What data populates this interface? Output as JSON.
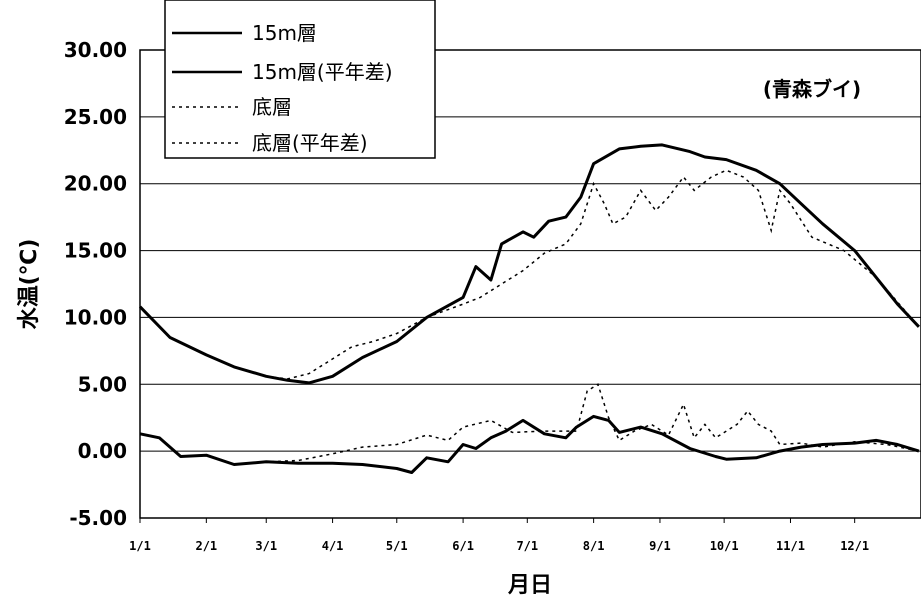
{
  "chart_data": {
    "type": "line",
    "xlabel": "月日",
    "ylabel": "水温(℃)",
    "annotation": "(青森ブイ)",
    "ylim": [
      -5,
      30
    ],
    "ytick_labels": [
      "30.00",
      "25.00",
      "20.00",
      "15.00",
      "10.00",
      "5.00",
      "0.00",
      "-5.00"
    ],
    "xtick_labels": [
      "1/1",
      "2/1",
      "3/1",
      "4/1",
      "5/1",
      "6/1",
      "7/1",
      "8/1",
      "9/1",
      "10/1",
      "11/1",
      "12/1"
    ],
    "grid": true,
    "legend_position": "top-left",
    "series": [
      {
        "name": "15m層",
        "style": "solid",
        "color": "#000000",
        "x": [
          1,
          15,
          32,
          45,
          60,
          70,
          80,
          91,
          105,
          121,
          135,
          152,
          158,
          165,
          170,
          180,
          185,
          192,
          200,
          207,
          213,
          225,
          235,
          245,
          258,
          265,
          275,
          289,
          300,
          310,
          320,
          335,
          345,
          355,
          365
        ],
        "y": [
          10.8,
          8.5,
          7.2,
          6.3,
          5.6,
          5.3,
          5.1,
          5.6,
          7.0,
          8.2,
          10.0,
          11.5,
          13.8,
          12.8,
          15.5,
          16.4,
          16.0,
          17.2,
          17.5,
          19.0,
          21.5,
          22.6,
          22.8,
          22.9,
          22.4,
          22.0,
          21.8,
          21.0,
          20.0,
          18.5,
          17.0,
          15.0,
          13.0,
          11.0,
          9.3
        ]
      },
      {
        "name": "15m層(平年差)",
        "style": "solid",
        "color": "#000000",
        "x": [
          1,
          10,
          20,
          32,
          45,
          60,
          75,
          91,
          105,
          121,
          128,
          135,
          145,
          152,
          158,
          165,
          172,
          180,
          190,
          200,
          205,
          213,
          220,
          225,
          235,
          245,
          258,
          270,
          275,
          289,
          300,
          310,
          320,
          335,
          345,
          355,
          365
        ],
        "y": [
          1.3,
          1.0,
          -0.4,
          -0.3,
          -1.0,
          -0.8,
          -0.9,
          -0.9,
          -1.0,
          -1.3,
          -1.6,
          -0.5,
          -0.8,
          0.5,
          0.2,
          1.0,
          1.5,
          2.3,
          1.3,
          1.0,
          1.8,
          2.6,
          2.3,
          1.4,
          1.8,
          1.3,
          0.2,
          -0.4,
          -0.6,
          -0.5,
          0.0,
          0.3,
          0.5,
          0.6,
          0.8,
          0.5,
          0.0
        ]
      },
      {
        "name": "底層",
        "style": "dotted",
        "color": "#000000",
        "x": [
          1,
          15,
          32,
          45,
          60,
          70,
          80,
          91,
          100,
          110,
          121,
          135,
          152,
          160,
          170,
          180,
          190,
          200,
          207,
          213,
          218,
          222,
          228,
          235,
          242,
          248,
          255,
          260,
          268,
          275,
          283,
          290,
          296,
          300,
          305,
          315,
          330,
          345,
          365
        ],
        "y": [
          10.8,
          8.5,
          7.2,
          6.3,
          5.6,
          5.4,
          5.8,
          6.9,
          7.8,
          8.2,
          8.8,
          10.0,
          11.0,
          11.5,
          12.5,
          13.5,
          14.8,
          15.5,
          17.0,
          20.0,
          18.5,
          17.0,
          17.5,
          19.5,
          18.0,
          19.0,
          20.5,
          19.5,
          20.5,
          21.0,
          20.5,
          19.5,
          16.5,
          19.5,
          18.5,
          16.0,
          15.0,
          13.0,
          9.3
        ]
      },
      {
        "name": "底層(平年差)",
        "style": "dotted",
        "color": "#000000",
        "x": [
          1,
          10,
          20,
          32,
          45,
          60,
          75,
          91,
          105,
          121,
          135,
          145,
          152,
          165,
          175,
          190,
          205,
          210,
          215,
          220,
          225,
          232,
          240,
          248,
          255,
          260,
          265,
          270,
          280,
          285,
          290,
          296,
          300,
          310,
          320,
          335,
          350,
          365
        ],
        "y": [
          1.3,
          1.0,
          -0.4,
          -0.3,
          -1.0,
          -0.8,
          -0.7,
          -0.2,
          0.3,
          0.5,
          1.2,
          0.8,
          1.8,
          2.3,
          1.4,
          1.5,
          1.5,
          4.5,
          5.0,
          2.5,
          0.8,
          1.5,
          2.0,
          1.2,
          3.5,
          1.0,
          2.0,
          1.0,
          2.0,
          3.0,
          2.0,
          1.5,
          0.5,
          0.6,
          0.3,
          0.7,
          0.5,
          0.0
        ]
      }
    ]
  }
}
